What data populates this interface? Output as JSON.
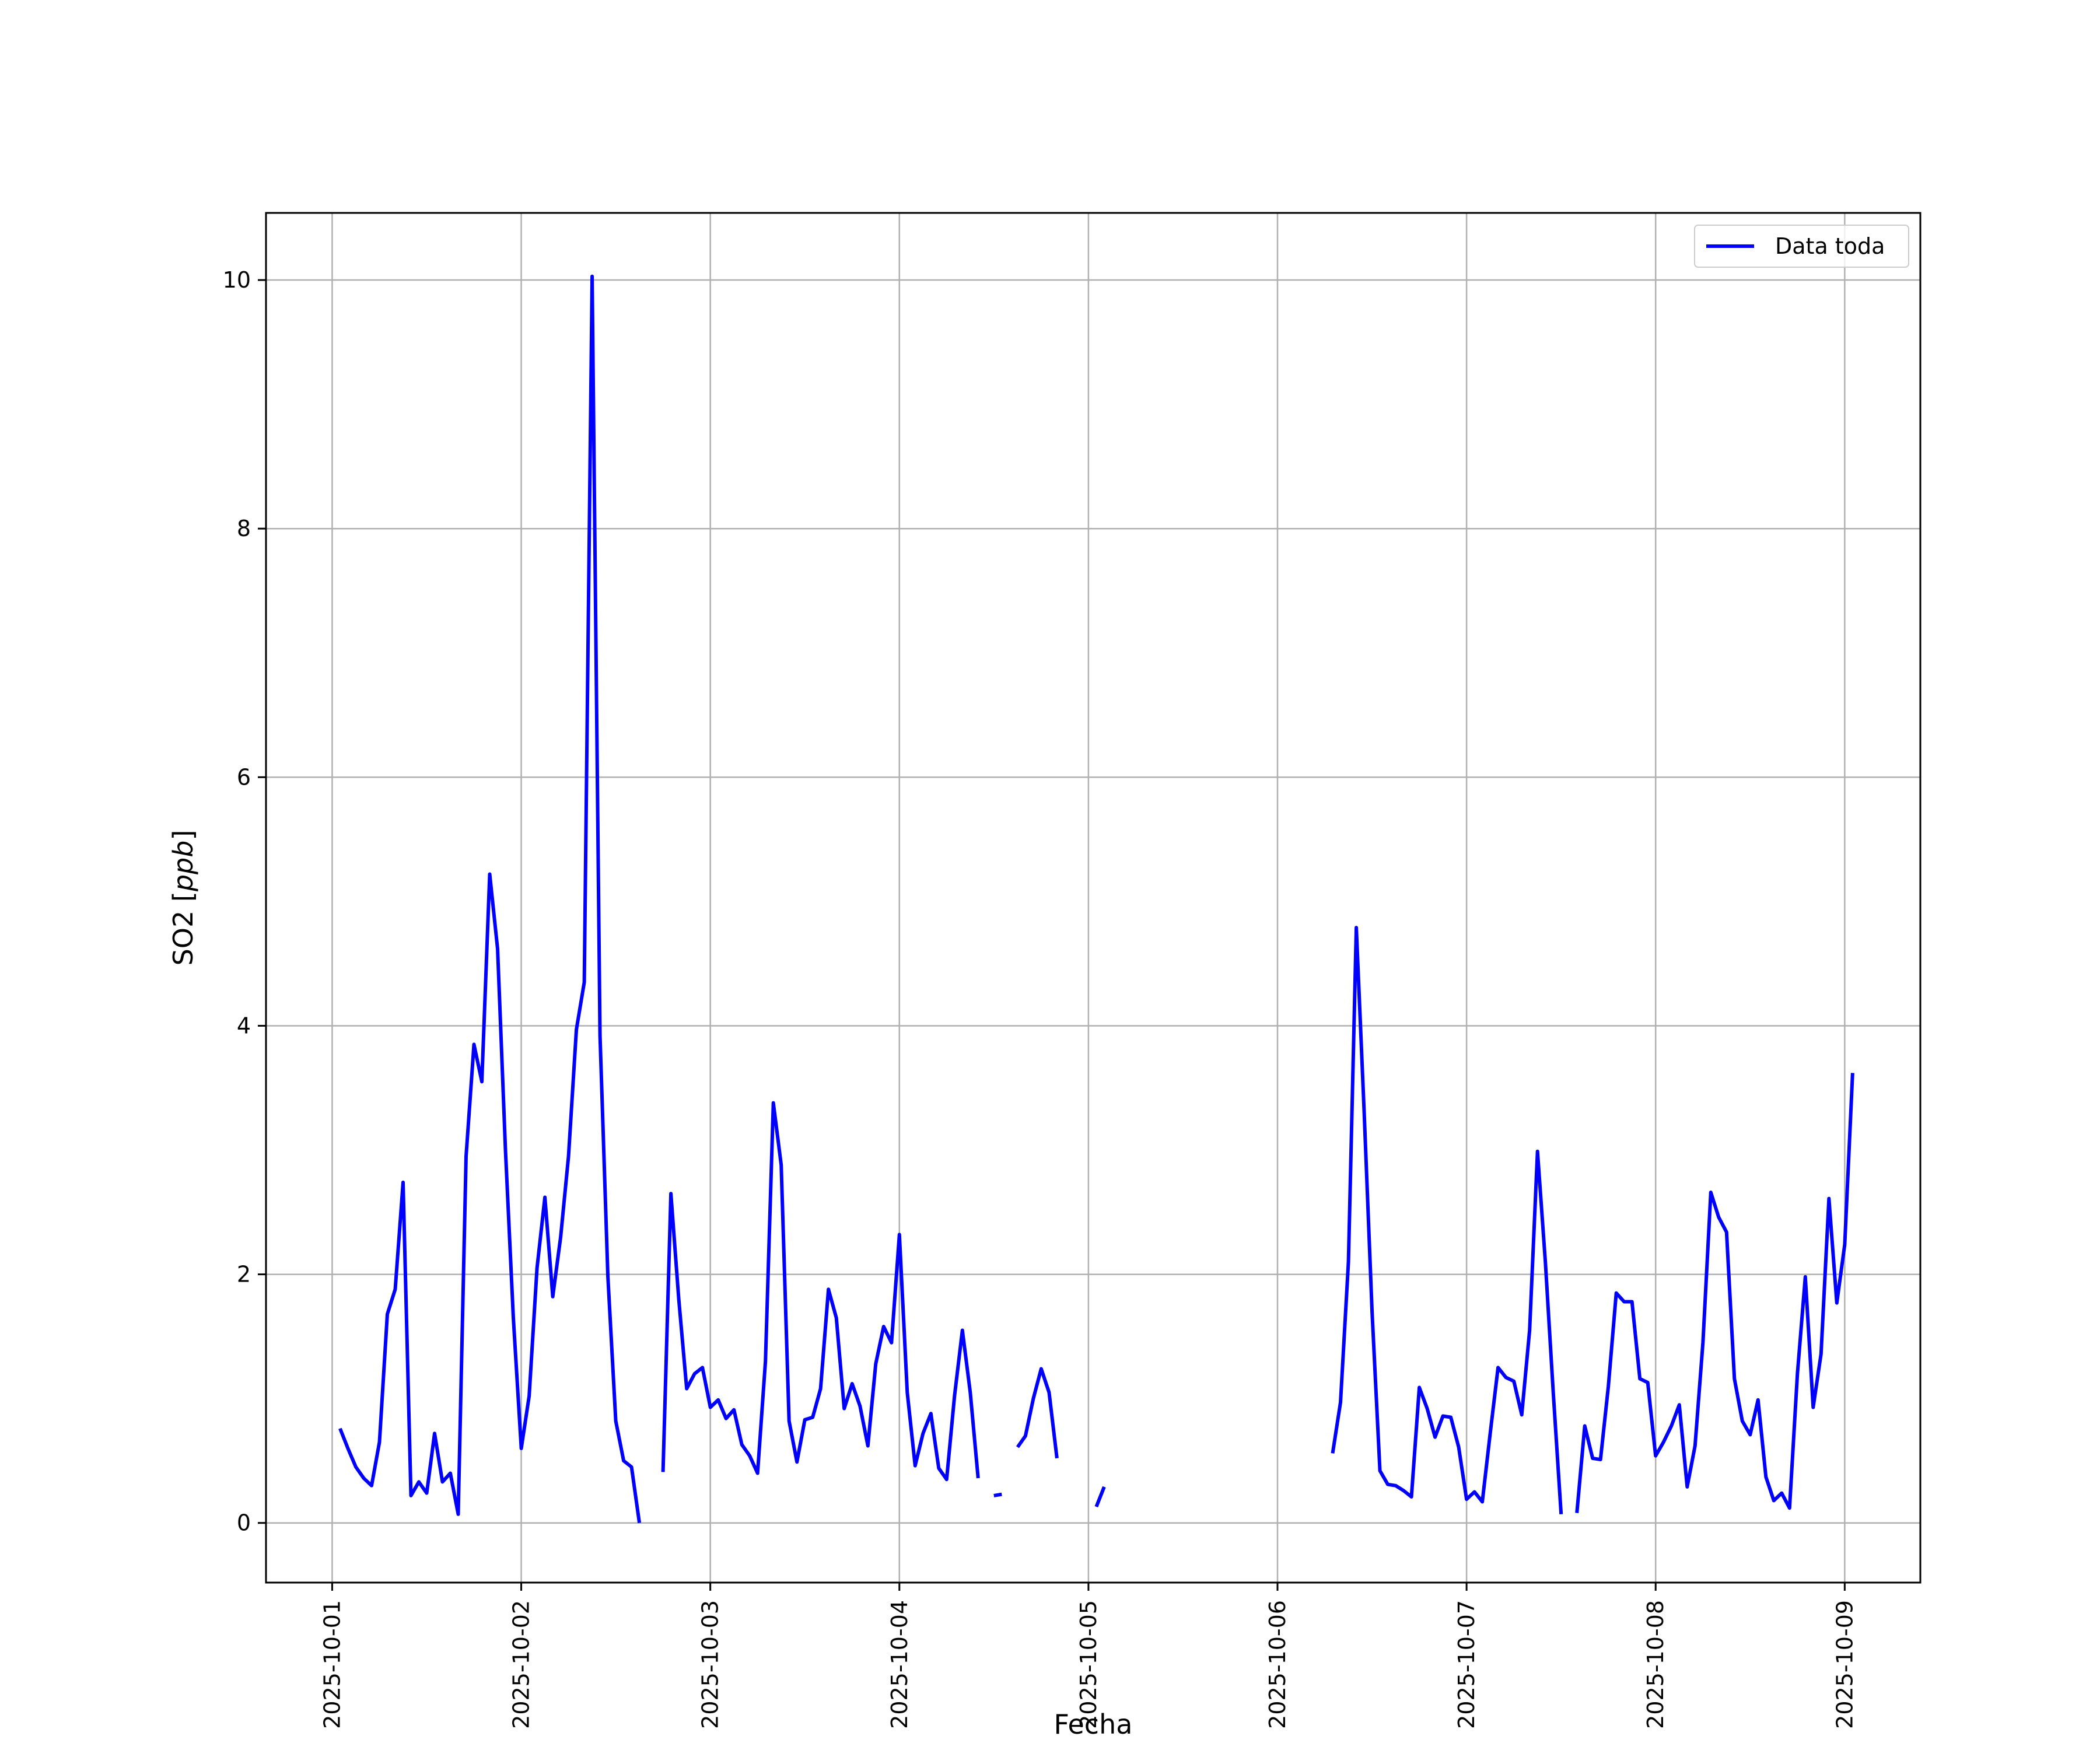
{
  "chart_data": {
    "type": "line",
    "xlabel": "Fecha",
    "ylabel": "SO2 [ppb]",
    "ylabel_main": "SO2 [",
    "ylabel_unit": "ppb",
    "ylabel_close": "]",
    "x_type": "date",
    "x_range": [
      "2025-10-00T15:36",
      "2025-10-09T09:36"
    ],
    "ylim": [
      -0.48,
      10.54
    ],
    "x_ticks": [
      "2025-10-01",
      "2025-10-02",
      "2025-10-03",
      "2025-10-04",
      "2025-10-05",
      "2025-10-06",
      "2025-10-07",
      "2025-10-08",
      "2025-10-09"
    ],
    "y_ticks": [
      0,
      2,
      4,
      6,
      8,
      10
    ],
    "y_tick_labels": [
      "0",
      "2",
      "4",
      "6",
      "8",
      "10"
    ],
    "grid": true,
    "legend": {
      "position": "top-right",
      "entries": [
        "Data toda"
      ]
    },
    "colors": {
      "series": "#0000ff",
      "grid": "#b0b0b0",
      "axes": "#000000"
    },
    "series": [
      {
        "name": "Data toda",
        "segments": [
          [
            [
              "2025-10-01T01:00",
              0.76
            ],
            [
              "2025-10-01T02:00",
              0.6
            ],
            [
              "2025-10-01T03:00",
              0.45
            ],
            [
              "2025-10-01T04:00",
              0.36
            ],
            [
              "2025-10-01T05:00",
              0.3
            ],
            [
              "2025-10-01T06:00",
              0.65
            ],
            [
              "2025-10-01T07:00",
              1.68
            ],
            [
              "2025-10-01T08:00",
              1.88
            ],
            [
              "2025-10-01T09:00",
              2.74
            ],
            [
              "2025-10-01T10:00",
              0.22
            ],
            [
              "2025-10-01T11:00",
              0.33
            ],
            [
              "2025-10-01T12:00",
              0.24
            ],
            [
              "2025-10-01T13:00",
              0.72
            ],
            [
              "2025-10-01T14:00",
              0.33
            ],
            [
              "2025-10-01T15:00",
              0.4
            ],
            [
              "2025-10-01T16:00",
              0.07
            ],
            [
              "2025-10-01T17:00",
              2.95
            ],
            [
              "2025-10-01T18:00",
              3.85
            ],
            [
              "2025-10-01T19:00",
              3.55
            ],
            [
              "2025-10-01T20:00",
              5.22
            ],
            [
              "2025-10-01T21:00",
              4.62
            ],
            [
              "2025-10-01T22:00",
              3.0
            ],
            [
              "2025-10-01T23:00",
              1.65
            ],
            [
              "2025-10-02T00:00",
              0.6
            ],
            [
              "2025-10-02T01:00",
              1.02
            ],
            [
              "2025-10-02T02:00",
              2.05
            ],
            [
              "2025-10-02T03:00",
              2.62
            ],
            [
              "2025-10-02T04:00",
              1.82
            ],
            [
              "2025-10-02T05:00",
              2.3
            ],
            [
              "2025-10-02T06:00",
              2.95
            ],
            [
              "2025-10-02T07:00",
              3.97
            ],
            [
              "2025-10-02T08:00",
              4.35
            ],
            [
              "2025-10-02T09:00",
              10.03
            ],
            [
              "2025-10-02T10:00",
              3.92
            ],
            [
              "2025-10-02T11:00",
              1.98
            ],
            [
              "2025-10-02T12:00",
              0.82
            ],
            [
              "2025-10-02T13:00",
              0.5
            ],
            [
              "2025-10-02T14:00",
              0.45
            ],
            [
              "2025-10-02T15:00",
              0.0
            ]
          ],
          [
            [
              "2025-10-02T18:00",
              0.41
            ],
            [
              "2025-10-02T19:00",
              2.65
            ],
            [
              "2025-10-02T20:00",
              1.8
            ],
            [
              "2025-10-02T21:00",
              1.08
            ],
            [
              "2025-10-02T22:00",
              1.2
            ],
            [
              "2025-10-02T23:00",
              1.25
            ],
            [
              "2025-10-03T00:00",
              0.93
            ],
            [
              "2025-10-03T01:00",
              0.99
            ],
            [
              "2025-10-03T02:00",
              0.84
            ],
            [
              "2025-10-03T03:00",
              0.91
            ],
            [
              "2025-10-03T04:00",
              0.63
            ],
            [
              "2025-10-03T05:00",
              0.54
            ],
            [
              "2025-10-03T06:00",
              0.4
            ],
            [
              "2025-10-03T07:00",
              1.3
            ],
            [
              "2025-10-03T08:00",
              3.38
            ],
            [
              "2025-10-03T09:00",
              2.88
            ],
            [
              "2025-10-03T10:00",
              0.82
            ],
            [
              "2025-10-03T11:00",
              0.49
            ],
            [
              "2025-10-03T12:00",
              0.83
            ],
            [
              "2025-10-03T13:00",
              0.85
            ],
            [
              "2025-10-03T14:00",
              1.08
            ],
            [
              "2025-10-03T15:00",
              1.88
            ],
            [
              "2025-10-03T16:00",
              1.65
            ],
            [
              "2025-10-03T17:00",
              0.92
            ],
            [
              "2025-10-03T18:00",
              1.12
            ],
            [
              "2025-10-03T19:00",
              0.94
            ],
            [
              "2025-10-03T20:00",
              0.62
            ],
            [
              "2025-10-03T21:00",
              1.28
            ],
            [
              "2025-10-03T22:00",
              1.58
            ],
            [
              "2025-10-03T23:00",
              1.45
            ],
            [
              "2025-10-04T00:00",
              2.32
            ],
            [
              "2025-10-04T01:00",
              1.05
            ],
            [
              "2025-10-04T02:00",
              0.46
            ],
            [
              "2025-10-04T03:00",
              0.72
            ],
            [
              "2025-10-04T04:00",
              0.88
            ],
            [
              "2025-10-04T05:00",
              0.44
            ],
            [
              "2025-10-04T06:00",
              0.35
            ],
            [
              "2025-10-04T07:00",
              1.02
            ],
            [
              "2025-10-04T08:00",
              1.55
            ],
            [
              "2025-10-04T09:00",
              1.05
            ],
            [
              "2025-10-04T10:00",
              0.36
            ]
          ],
          [
            [
              "2025-10-04T12:00",
              0.22
            ],
            [
              "2025-10-04T13:00",
              0.23
            ]
          ],
          [
            [
              "2025-10-04T15:00",
              0.61
            ],
            [
              "2025-10-04T16:00",
              0.7
            ],
            [
              "2025-10-04T17:00",
              1.0
            ],
            [
              "2025-10-04T18:00",
              1.24
            ],
            [
              "2025-10-04T19:00",
              1.05
            ],
            [
              "2025-10-04T20:00",
              0.52
            ]
          ],
          [
            [
              "2025-10-05T01:00",
              0.13
            ],
            [
              "2025-10-05T02:00",
              0.29
            ]
          ],
          [
            [
              "2025-10-06T07:00",
              0.56
            ],
            [
              "2025-10-06T08:00",
              0.97
            ],
            [
              "2025-10-06T09:00",
              2.1
            ],
            [
              "2025-10-06T10:00",
              4.79
            ],
            [
              "2025-10-06T11:00",
              3.3
            ],
            [
              "2025-10-06T12:00",
              1.7
            ],
            [
              "2025-10-06T13:00",
              0.42
            ],
            [
              "2025-10-06T14:00",
              0.31
            ],
            [
              "2025-10-06T15:00",
              0.3
            ],
            [
              "2025-10-06T16:00",
              0.26
            ],
            [
              "2025-10-06T17:00",
              0.21
            ],
            [
              "2025-10-06T18:00",
              1.09
            ],
            [
              "2025-10-06T19:00",
              0.92
            ],
            [
              "2025-10-06T20:00",
              0.69
            ],
            [
              "2025-10-06T21:00",
              0.86
            ],
            [
              "2025-10-06T22:00",
              0.85
            ],
            [
              "2025-10-06T23:00",
              0.61
            ],
            [
              "2025-10-07T00:00",
              0.19
            ],
            [
              "2025-10-07T01:00",
              0.25
            ],
            [
              "2025-10-07T02:00",
              0.17
            ],
            [
              "2025-10-07T03:00",
              0.72
            ],
            [
              "2025-10-07T04:00",
              1.25
            ],
            [
              "2025-10-07T05:00",
              1.17
            ],
            [
              "2025-10-07T06:00",
              1.14
            ],
            [
              "2025-10-07T07:00",
              0.87
            ],
            [
              "2025-10-07T08:00",
              1.55
            ],
            [
              "2025-10-07T09:00",
              2.99
            ],
            [
              "2025-10-07T10:00",
              2.1
            ],
            [
              "2025-10-07T11:00",
              1.05
            ],
            [
              "2025-10-07T12:00",
              0.07
            ]
          ],
          [
            [
              "2025-10-07T14:00",
              0.08
            ],
            [
              "2025-10-07T15:00",
              0.78
            ],
            [
              "2025-10-07T16:00",
              0.52
            ],
            [
              "2025-10-07T17:00",
              0.51
            ],
            [
              "2025-10-07T18:00",
              1.1
            ],
            [
              "2025-10-07T19:00",
              1.85
            ],
            [
              "2025-10-07T20:00",
              1.78
            ],
            [
              "2025-10-07T21:00",
              1.78
            ],
            [
              "2025-10-07T22:00",
              1.16
            ],
            [
              "2025-10-07T23:00",
              1.13
            ],
            [
              "2025-10-08T00:00",
              0.54
            ],
            [
              "2025-10-08T01:00",
              0.65
            ],
            [
              "2025-10-08T02:00",
              0.78
            ],
            [
              "2025-10-08T03:00",
              0.95
            ],
            [
              "2025-10-08T04:00",
              0.29
            ],
            [
              "2025-10-08T05:00",
              0.62
            ],
            [
              "2025-10-08T06:00",
              1.45
            ],
            [
              "2025-10-08T07:00",
              2.66
            ],
            [
              "2025-10-08T08:00",
              2.46
            ],
            [
              "2025-10-08T09:00",
              2.34
            ],
            [
              "2025-10-08T10:00",
              1.16
            ],
            [
              "2025-10-08T11:00",
              0.82
            ],
            [
              "2025-10-08T12:00",
              0.71
            ],
            [
              "2025-10-08T13:00",
              0.99
            ],
            [
              "2025-10-08T14:00",
              0.37
            ],
            [
              "2025-10-08T15:00",
              0.18
            ],
            [
              "2025-10-08T16:00",
              0.24
            ],
            [
              "2025-10-08T17:00",
              0.12
            ],
            [
              "2025-10-08T18:00",
              1.2
            ],
            [
              "2025-10-08T19:00",
              1.98
            ],
            [
              "2025-10-08T20:00",
              0.93
            ],
            [
              "2025-10-08T21:00",
              1.36
            ],
            [
              "2025-10-08T22:00",
              2.61
            ],
            [
              "2025-10-08T23:00",
              1.77
            ],
            [
              "2025-10-09T00:00",
              2.24
            ],
            [
              "2025-10-09T01:00",
              3.62
            ]
          ]
        ]
      }
    ]
  }
}
